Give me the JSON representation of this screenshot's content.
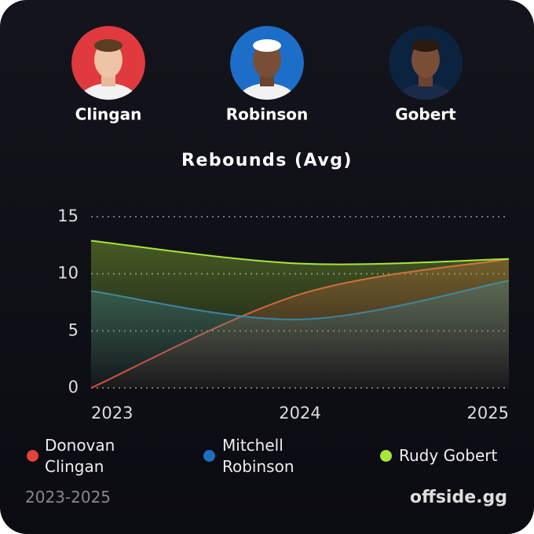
{
  "players": [
    {
      "name": "Clingan",
      "bg": "#e03a3e"
    },
    {
      "name": "Robinson",
      "bg": "#1d6ec9"
    },
    {
      "name": "Gobert",
      "bg": "#0c2340"
    }
  ],
  "chart_data": {
    "type": "area",
    "title": "Rebounds (Avg)",
    "x": [
      2023,
      2024,
      2025
    ],
    "xlim": [
      2023,
      2025
    ],
    "xticks": [
      2023,
      2024,
      2025
    ],
    "ylim": [
      0,
      15
    ],
    "yticks": [
      0,
      5,
      10,
      15
    ],
    "grid": true,
    "series": [
      {
        "name": "Donovan Clingan",
        "color": "#e0443c",
        "values": [
          0,
          8.2,
          11.3
        ]
      },
      {
        "name": "Mitchell Robinson",
        "color": "#1f6fbf",
        "values": [
          8.5,
          6.0,
          9.4
        ]
      },
      {
        "name": "Rudy Gobert",
        "color": "#a8e63a",
        "values": [
          12.9,
          10.9,
          11.3
        ]
      }
    ]
  },
  "footer": {
    "range": "2023-2025",
    "brand": "offside.gg"
  }
}
